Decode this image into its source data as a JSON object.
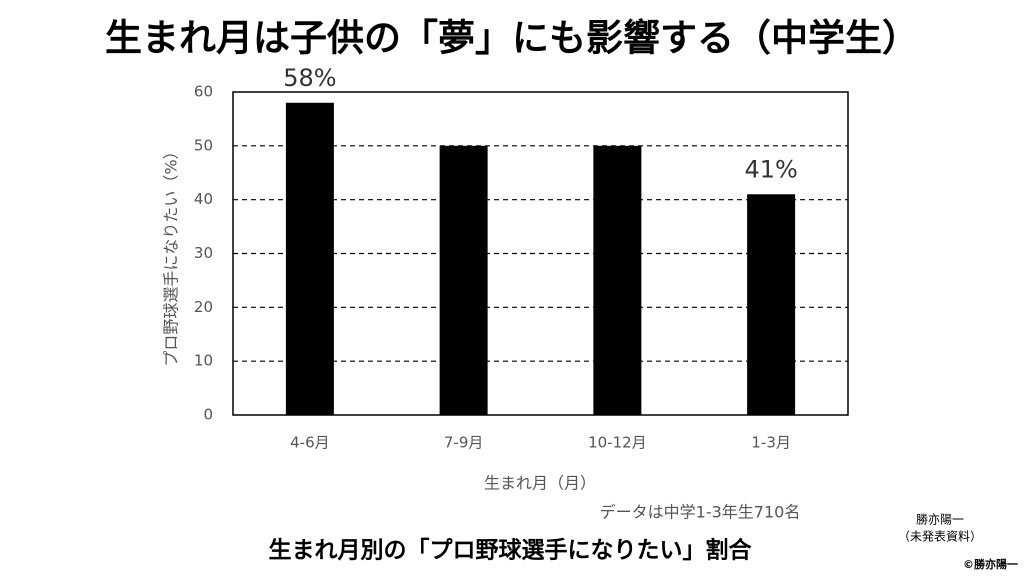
{
  "chart_data": {
    "type": "bar",
    "title": "生まれ月は子供の「夢」にも影響する（中学生）",
    "y_label": "プロ野球選手になりたい（%）",
    "x_label": "生まれ月（月）",
    "note": "データは中学1-3年生710名",
    "caption": "生まれ月別の「プロ野球選手になりたい」割合",
    "author": "勝亦陽一",
    "source_note": "（未発表資料）",
    "copyright": "©勝亦陽一",
    "categories": [
      "4-6月",
      "7-9月",
      "10-12月",
      "1-3月"
    ],
    "values": [
      58,
      50,
      50,
      41
    ],
    "value_labels": [
      "58%",
      null,
      null,
      "41%"
    ],
    "color": "#000000",
    "ylim": [
      0,
      60
    ],
    "yticks": [
      0,
      10,
      20,
      30,
      40,
      50,
      60
    ],
    "grid": true
  }
}
